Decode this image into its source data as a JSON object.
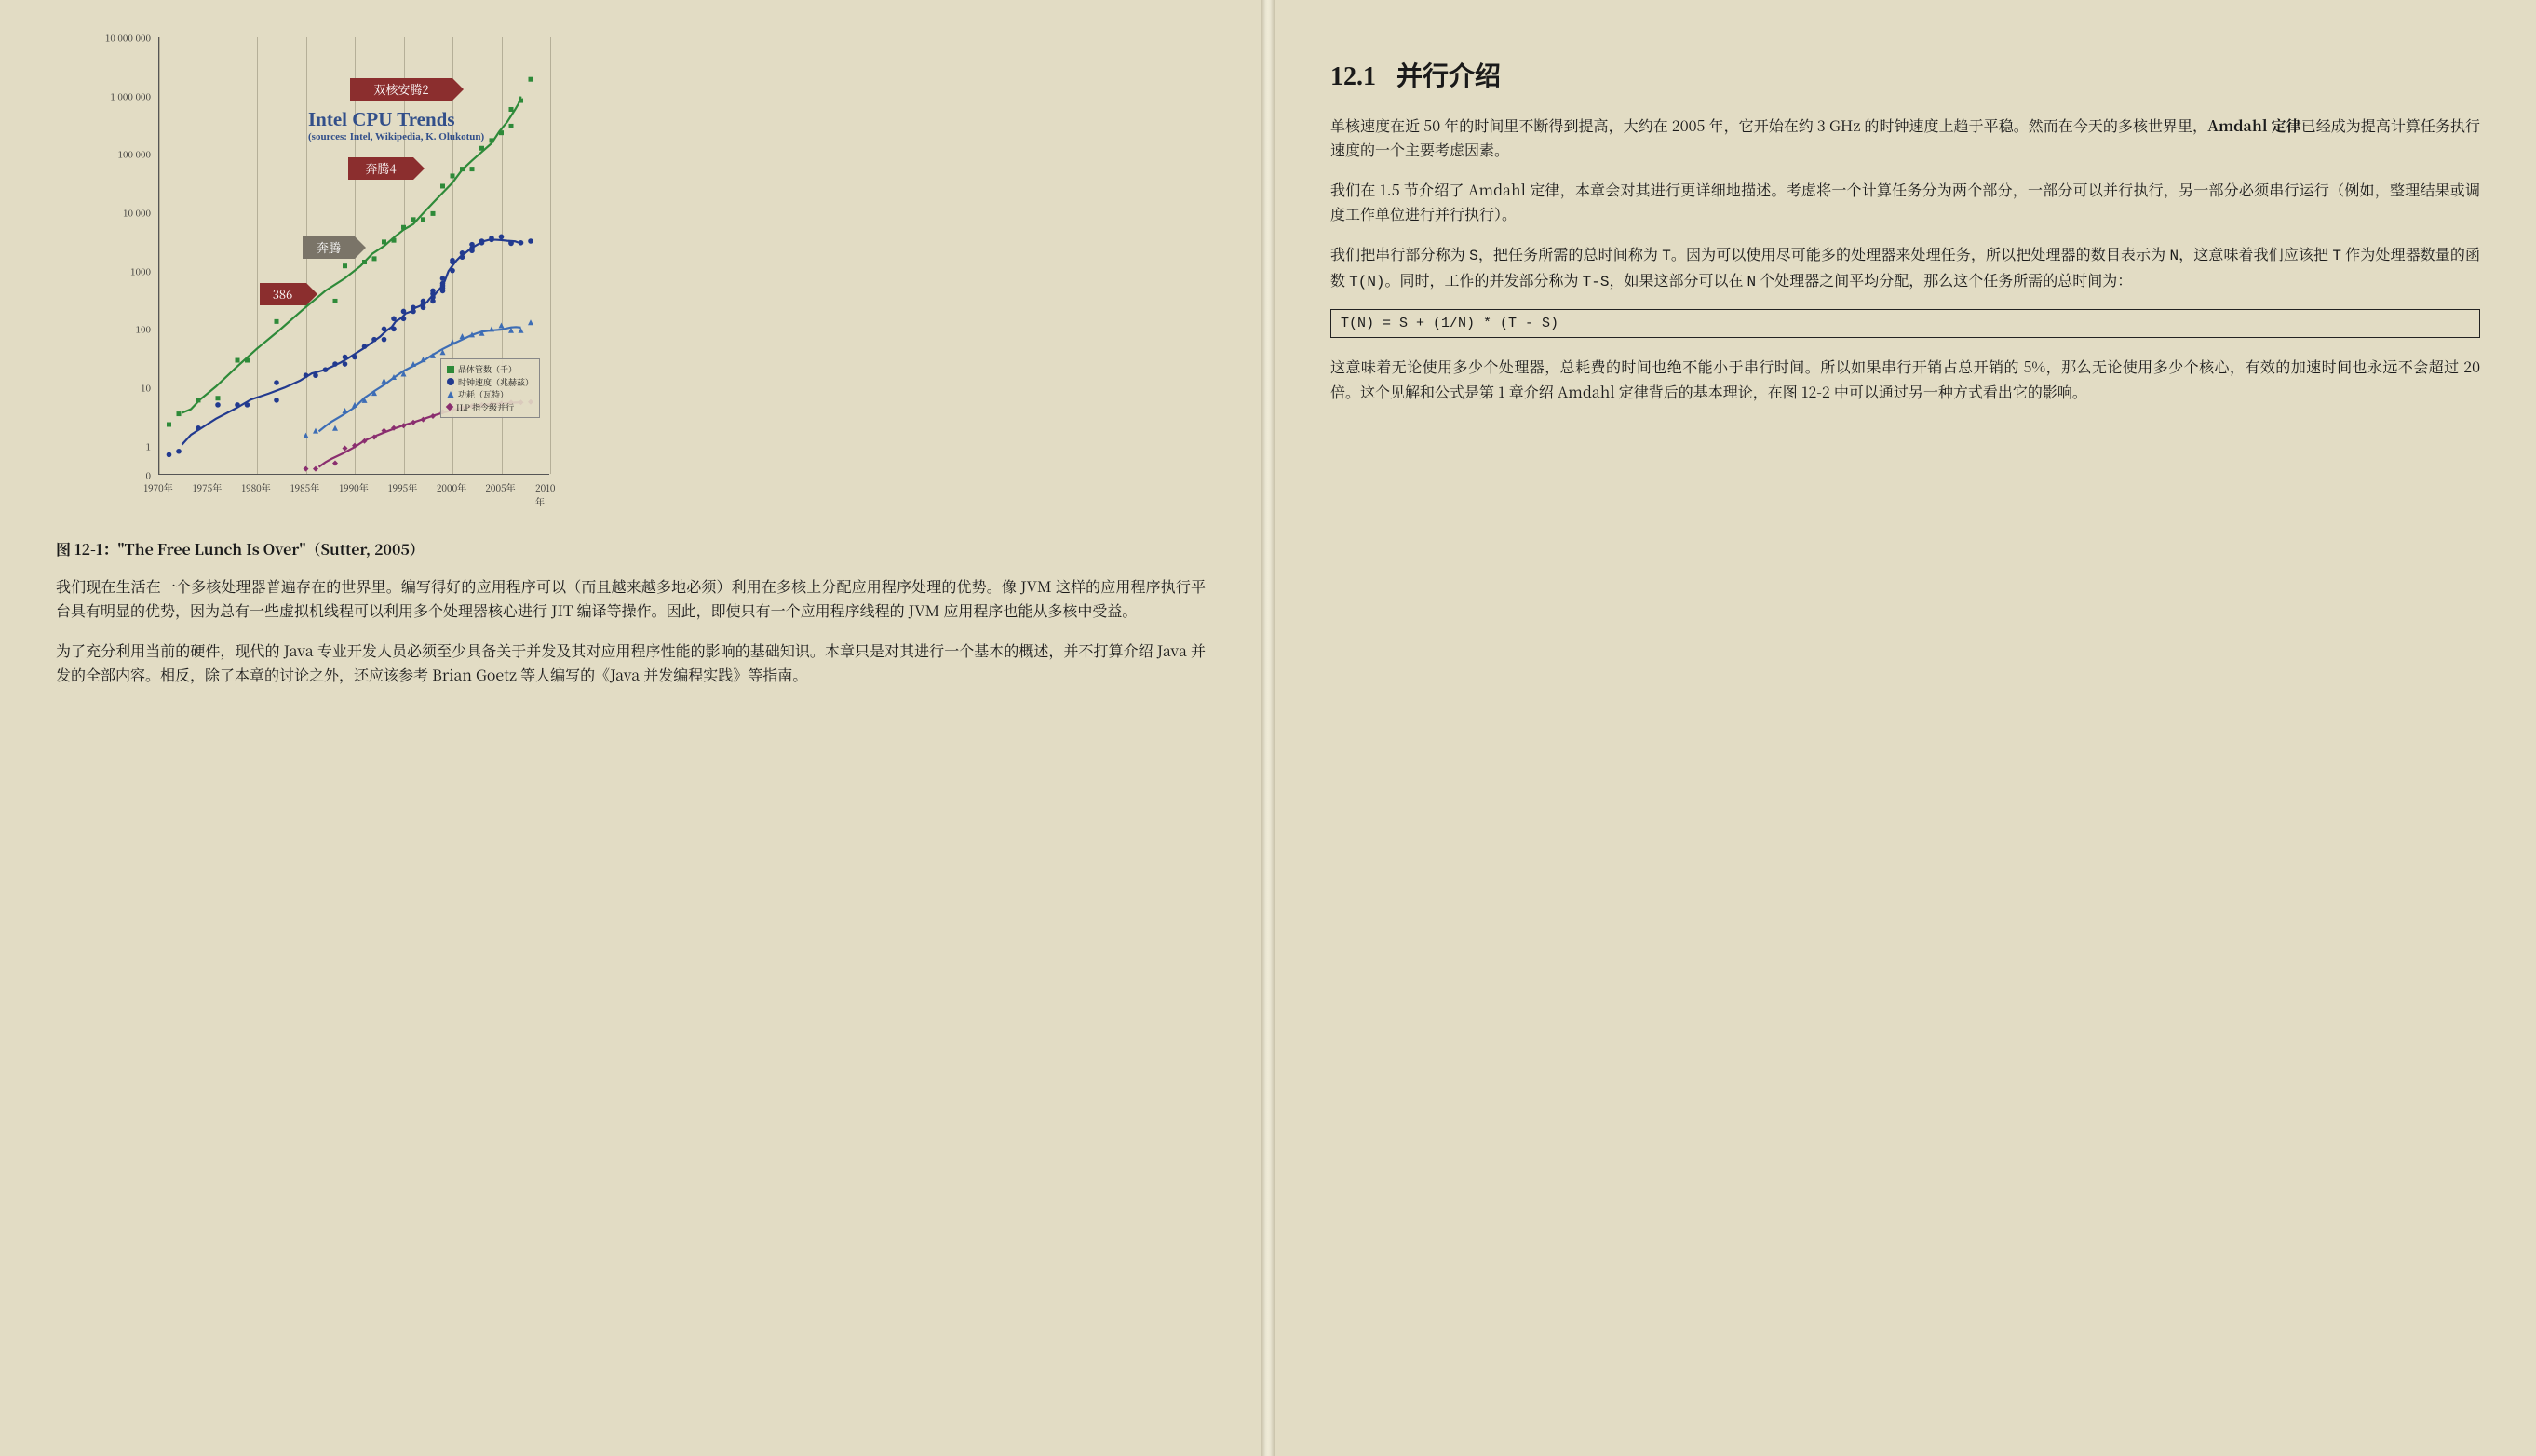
{
  "page_bg": "#e2dcc4",
  "left": {
    "chart": {
      "type": "scatter-log",
      "title_line1": "Intel CPU Trends",
      "title_line2": "(sources: Intel, Wikipedia, K. Olukotun)",
      "title_color": "#324f8a",
      "x": {
        "min": 1970,
        "max": 2010,
        "ticks": [
          1970,
          1975,
          1980,
          1985,
          1990,
          1995,
          2000,
          2005,
          2010
        ],
        "labels": [
          "1970年",
          "1975年",
          "1980年",
          "1985年",
          "1990年",
          "1995年",
          "2000年",
          "2005年",
          "2010年"
        ]
      },
      "y": {
        "scale": "log",
        "ticks": [
          0,
          1,
          10,
          100,
          1000,
          10000,
          100000,
          1000000,
          10000000
        ],
        "labels": [
          "0",
          "1",
          "10",
          "100",
          "1000",
          "10 000",
          "100 000",
          "1 000 000",
          "10 000 000"
        ]
      },
      "arrows": [
        {
          "label": "双核安腾2",
          "bg": "red",
          "x": 2000,
          "y_exp": 6.1,
          "w": 110
        },
        {
          "label": "奔腾4",
          "bg": "red",
          "x": 1996,
          "y_exp": 4.75,
          "w": 70
        },
        {
          "label": "奔腾",
          "bg": "gray",
          "x": 1990,
          "y_exp": 3.4,
          "w": 56
        },
        {
          "label": "386",
          "bg": "red",
          "x": 1985,
          "y_exp": 2.6,
          "w": 50
        }
      ],
      "legend": [
        {
          "color": "#2e8a39",
          "shape": "square",
          "label": "晶体管数（千）"
        },
        {
          "color": "#223a8f",
          "shape": "circle",
          "label": "时钟速度（兆赫兹）"
        },
        {
          "color": "#3d6db5",
          "shape": "triangle",
          "label": "功耗（瓦特）"
        },
        {
          "color": "#8a2e6f",
          "shape": "diamond",
          "label": "ILP 指令级并行"
        }
      ],
      "series": {
        "transistors": {
          "color": "#2e8a39",
          "marker": "square",
          "points": [
            [
              1971,
              2.3
            ],
            [
              1972,
              3.5
            ],
            [
              1974,
              6
            ],
            [
              1976,
              6.5
            ],
            [
              1978,
              29
            ],
            [
              1979,
              29
            ],
            [
              1982,
              134
            ],
            [
              1985,
              275
            ],
            [
              1988,
              300
            ],
            [
              1989,
              1200
            ],
            [
              1991,
              1400
            ],
            [
              1992,
              1600
            ],
            [
              1993,
              3100
            ],
            [
              1994,
              3300
            ],
            [
              1995,
              5500
            ],
            [
              1996,
              7500
            ],
            [
              1997,
              7500
            ],
            [
              1998,
              9500
            ],
            [
              1999,
              28000
            ],
            [
              2000,
              42000
            ],
            [
              2001,
              55000
            ],
            [
              2002,
              55000
            ],
            [
              2003,
              125000
            ],
            [
              2004,
              170000
            ],
            [
              2005,
              230000
            ],
            [
              2006,
              300000
            ],
            [
              2006,
              580000
            ],
            [
              2007,
              820000
            ],
            [
              2008,
              1900000
            ]
          ]
        },
        "clock": {
          "color": "#223a8f",
          "marker": "circle",
          "points": [
            [
              1971,
              0.7
            ],
            [
              1972,
              0.8
            ],
            [
              1974,
              2
            ],
            [
              1976,
              5
            ],
            [
              1978,
              5
            ],
            [
              1979,
              5
            ],
            [
              1982,
              6
            ],
            [
              1982,
              12
            ],
            [
              1985,
              16
            ],
            [
              1986,
              16
            ],
            [
              1987,
              20
            ],
            [
              1988,
              25
            ],
            [
              1989,
              25
            ],
            [
              1989,
              33
            ],
            [
              1990,
              33
            ],
            [
              1991,
              50
            ],
            [
              1992,
              66
            ],
            [
              1993,
              66
            ],
            [
              1993,
              100
            ],
            [
              1994,
              100
            ],
            [
              1994,
              150
            ],
            [
              1995,
              150
            ],
            [
              1995,
              200
            ],
            [
              1996,
              200
            ],
            [
              1996,
              233
            ],
            [
              1997,
              233
            ],
            [
              1997,
              300
            ],
            [
              1997,
              266
            ],
            [
              1998,
              300
            ],
            [
              1998,
              350
            ],
            [
              1998,
              400
            ],
            [
              1998,
              450
            ],
            [
              1999,
              450
            ],
            [
              1999,
              500
            ],
            [
              1999,
              550
            ],
            [
              1999,
              600
            ],
            [
              1999,
              733
            ],
            [
              2000,
              1000
            ],
            [
              2000,
              1400
            ],
            [
              2000,
              1500
            ],
            [
              2001,
              1700
            ],
            [
              2001,
              2000
            ],
            [
              2002,
              2200
            ],
            [
              2002,
              2400
            ],
            [
              2002,
              2800
            ],
            [
              2003,
              3000
            ],
            [
              2003,
              3200
            ],
            [
              2004,
              3400
            ],
            [
              2004,
              3600
            ],
            [
              2005,
              3800
            ],
            [
              2006,
              2930
            ],
            [
              2006,
              3000
            ],
            [
              2007,
              3000
            ],
            [
              2008,
              3200
            ]
          ]
        },
        "power": {
          "color": "#3d6db5",
          "marker": "triangle",
          "points": [
            [
              1985,
              1.5
            ],
            [
              1986,
              1.8
            ],
            [
              1988,
              2
            ],
            [
              1989,
              4
            ],
            [
              1990,
              5
            ],
            [
              1991,
              6
            ],
            [
              1992,
              8
            ],
            [
              1993,
              13
            ],
            [
              1994,
              15
            ],
            [
              1995,
              17
            ],
            [
              1996,
              25
            ],
            [
              1997,
              30
            ],
            [
              1998,
              35
            ],
            [
              1999,
              40
            ],
            [
              2000,
              60
            ],
            [
              2001,
              75
            ],
            [
              2002,
              80
            ],
            [
              2003,
              85
            ],
            [
              2004,
              100
            ],
            [
              2005,
              115
            ],
            [
              2006,
              95
            ],
            [
              2007,
              95
            ],
            [
              2008,
              130
            ]
          ]
        },
        "ilp": {
          "color": "#8a2e6f",
          "marker": "diamond",
          "points": [
            [
              1985,
              0.4
            ],
            [
              1986,
              0.4
            ],
            [
              1988,
              0.5
            ],
            [
              1989,
              0.9
            ],
            [
              1990,
              1
            ],
            [
              1991,
              1.2
            ],
            [
              1992,
              1.4
            ],
            [
              1993,
              1.8
            ],
            [
              1994,
              2
            ],
            [
              1995,
              2.2
            ],
            [
              1996,
              2.5
            ],
            [
              1997,
              2.8
            ],
            [
              1998,
              3.2
            ],
            [
              1999,
              3.8
            ],
            [
              2000,
              4.2
            ],
            [
              2001,
              4.5
            ],
            [
              2002,
              4.8
            ],
            [
              2003,
              5
            ],
            [
              2004,
              5.2
            ],
            [
              2005,
              5.3
            ],
            [
              2006,
              5.5
            ],
            [
              2007,
              5.5
            ],
            [
              2008,
              5.6
            ]
          ]
        }
      }
    },
    "caption_prefix": "图 12-1：",
    "caption_title": "\"The Free Lunch Is Over\"",
    "caption_cite": "（Sutter, 2005）",
    "para1": "我们现在生活在一个多核处理器普遍存在的世界里。编写得好的应用程序可以（而且越来越多地必须）利用在多核上分配应用程序处理的优势。像 JVM 这样的应用程序执行平台具有明显的优势，因为总有一些虚拟机线程可以利用多个处理器核心进行 JIT 编译等操作。因此，即使只有一个应用程序线程的 JVM 应用程序也能从多核中受益。",
    "para2": "为了充分利用当前的硬件，现代的 Java 专业开发人员必须至少具备关于并发及其对应用程序性能的影响的基础知识。本章只是对其进行一个基本的概述，并不打算介绍 Java 并发的全部内容。相反，除了本章的讨论之外，还应该参考 Brian Goetz 等人编写的《Java 并发编程实践》等指南。"
  },
  "right": {
    "section_num": "12.1",
    "section_title": "并行介绍",
    "para1_a": "单核速度在近 50 年的时间里不断得到提高，大约在 2005 年，它开始在约 3 GHz 的时钟速度上趋于平稳。然而在今天的多核世界里，",
    "para1_bold": "Amdahl 定律",
    "para1_b": "已经成为提高计算任务执行速度的一个主要考虑因素。",
    "para2": "我们在 1.5 节介绍了 Amdahl 定律，本章会对其进行更详细地描述。考虑将一个计算任务分为两个部分，一部分可以并行执行，另一部分必须串行运行（例如，整理结果或调度工作单位进行并行执行）。",
    "para3_pre": "我们把串行部分称为 ",
    "p3_S": "S",
    "para3_a": "，把任务所需的总时间称为 ",
    "p3_T": "T",
    "para3_b": "。因为可以使用尽可能多的处理器来处理任务，所以把处理器的数目表示为 ",
    "p3_N": "N",
    "para3_c": "，这意味着我们应该把 ",
    "p3_T2": "T",
    "para3_d": " 作为处理器数量的函数 ",
    "p3_TN": "T(N)",
    "para3_e": "。同时，工作的并发部分称为 ",
    "p3_TS": "T-S",
    "para3_f": "，如果这部分可以在 ",
    "p3_N2": "N",
    "para3_g": " 个处理器之间平均分配，那么这个任务所需的总时间为：",
    "formula": "T(N) = S + (1/N) * (T - S)",
    "para4": "这意味着无论使用多少个处理器，总耗费的时间也绝不能小于串行时间。所以如果串行开销占总开销的 5%，那么无论使用多少个核心，有效的加速时间也永远不会超过 20 倍。这个见解和公式是第 1 章介绍 Amdahl 定律背后的基本理论，在图 12-2 中可以通过另一种方式看出它的影响。"
  }
}
